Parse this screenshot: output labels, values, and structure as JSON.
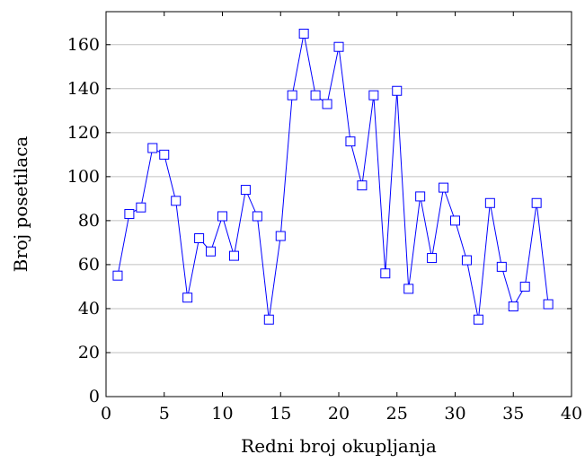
{
  "chart_data": {
    "type": "line",
    "title": "",
    "xlabel": "Redni broj okupljanja",
    "ylabel": "Broj posetilaca",
    "xlim": [
      0,
      40
    ],
    "ylim": [
      0,
      175
    ],
    "xticks": [
      0,
      5,
      10,
      15,
      20,
      25,
      30,
      35,
      40
    ],
    "yticks": [
      0,
      20,
      40,
      60,
      80,
      100,
      120,
      140,
      160
    ],
    "grid": "horizontal major lines",
    "marker": "square",
    "color": "#0000ff",
    "series": [
      {
        "x": [
          1,
          2,
          3,
          4,
          5,
          6,
          7,
          8,
          9,
          10,
          11,
          12,
          13,
          14,
          15,
          16,
          17,
          18,
          19,
          20,
          21,
          22,
          23,
          24,
          25,
          26,
          27,
          28,
          29,
          30,
          31,
          32,
          33,
          34,
          35,
          36,
          37,
          38
        ],
        "y": [
          55,
          83,
          86,
          113,
          110,
          89,
          45,
          72,
          66,
          82,
          64,
          94,
          82,
          35,
          73,
          137,
          165,
          137,
          133,
          159,
          116,
          96,
          137,
          56,
          139,
          49,
          91,
          63,
          95,
          80,
          62,
          35,
          88,
          59,
          41,
          50,
          88,
          42
        ]
      }
    ]
  }
}
